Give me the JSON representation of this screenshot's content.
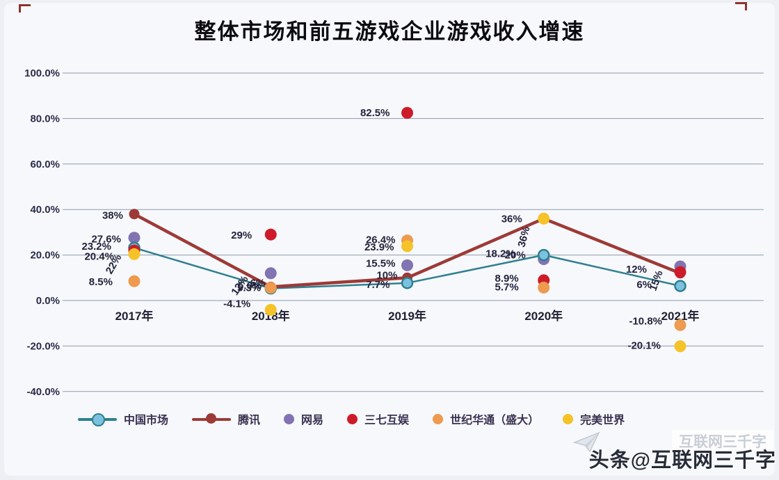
{
  "chart_data": {
    "type": "line",
    "title": "整体市场和前五游戏企业游戏收入增速",
    "categories": [
      "2017年",
      "2018年",
      "2019年",
      "2020年",
      "2021年"
    ],
    "series": [
      {
        "name": "中国市场",
        "style": "line",
        "color": "#2e7f8f",
        "marker_fill": "#7cc2e0",
        "marker_stroke": "#2e7f8f",
        "values": [
          23.2,
          5.3,
          7.7,
          20,
          6.4
        ],
        "labels": [
          "23.2%",
          "5.3%",
          "7.7%",
          "20%",
          "6%"
        ]
      },
      {
        "name": "腾讯",
        "style": "line",
        "color": "#9d3a37",
        "marker_fill": "#9d3a37",
        "marker_stroke": "#9d3a37",
        "values": [
          38,
          6,
          10,
          36,
          12
        ],
        "labels": [
          "38%",
          "6%",
          "10%",
          "36%",
          "12%"
        ]
      },
      {
        "name": "网易",
        "style": "scatter",
        "color": "#8273b3",
        "marker_fill": "#8273b3",
        "marker_stroke": "#8273b3",
        "values": [
          27.6,
          12,
          15.5,
          18.2,
          15
        ],
        "labels": [
          "27.6%",
          "12%",
          "15.5%",
          "18.2%",
          "15%"
        ]
      },
      {
        "name": "三七互娱",
        "style": "scatter",
        "color": "#ce1b2a",
        "marker_fill": "#ce1b2a",
        "marker_stroke": "#ce1b2a",
        "values": [
          22,
          29,
          82.5,
          8.9,
          12.5
        ],
        "labels": [
          "22%",
          "29%",
          "82.5%",
          "8.9%",
          null
        ]
      },
      {
        "name": "世纪华通（盛大）",
        "style": "scatter",
        "color": "#ee9a4f",
        "marker_fill": "#ee9a4f",
        "marker_stroke": "#ee9a4f",
        "values": [
          8.5,
          5.6,
          26.4,
          5.7,
          -10.8
        ],
        "labels": [
          "8.5%",
          "5.6%",
          "26.4%",
          "5.7%",
          "-10.8%"
        ]
      },
      {
        "name": "完美世界",
        "style": "scatter",
        "color": "#f5c328",
        "marker_fill": "#f5c328",
        "marker_stroke": "#f5c328",
        "values": [
          20.4,
          -4.1,
          23.9,
          36,
          -20.1
        ],
        "labels": [
          "20.4%",
          "-4.1%",
          "23.9%",
          "36%",
          "-20.1%"
        ]
      }
    ],
    "y_ticks": [
      "100.0%",
      "80.0%",
      "60.0%",
      "40.0%",
      "20.0%",
      "0.0%",
      "-20.0%",
      "-40.0%"
    ],
    "ylim": [
      -40,
      100
    ],
    "xlabel": "",
    "ylabel": "",
    "grid": true,
    "legend_position": "bottom"
  },
  "watermark": {
    "text": "头条@互联网三千字",
    "ghost": "互联网三千字"
  }
}
